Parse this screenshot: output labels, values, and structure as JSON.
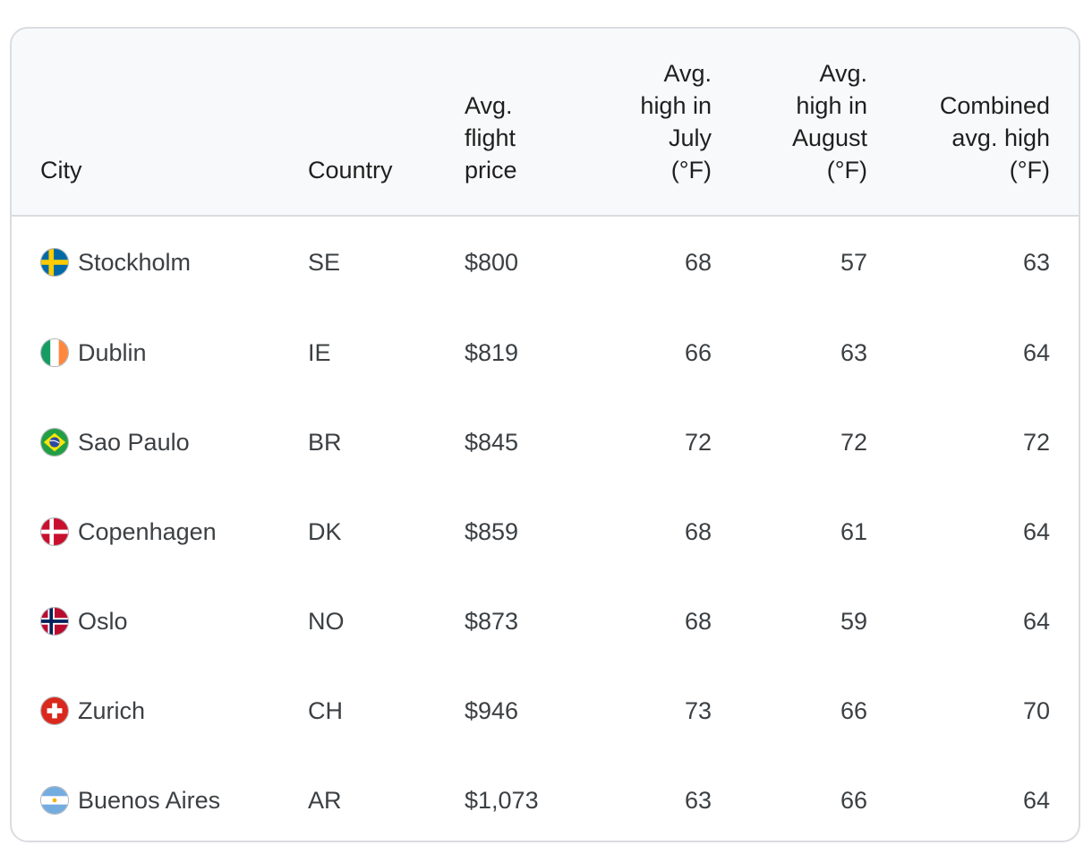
{
  "table": {
    "headers": {
      "city": "City",
      "country": "Country",
      "flight_price": "Avg. flight price",
      "high_july": "Avg. high in July (°F)",
      "high_august": "Avg. high in August (°F)",
      "combined_high": "Combined avg. high (°F)"
    },
    "rows": [
      {
        "city": "Stockholm",
        "flag_icon": "sweden-flag-icon",
        "country": "SE",
        "price": "$800",
        "july": "68",
        "august": "57",
        "combined": "63"
      },
      {
        "city": "Dublin",
        "flag_icon": "ireland-flag-icon",
        "country": "IE",
        "price": "$819",
        "july": "66",
        "august": "63",
        "combined": "64"
      },
      {
        "city": "Sao Paulo",
        "flag_icon": "brazil-flag-icon",
        "country": "BR",
        "price": "$845",
        "july": "72",
        "august": "72",
        "combined": "72"
      },
      {
        "city": "Copenhagen",
        "flag_icon": "denmark-flag-icon",
        "country": "DK",
        "price": "$859",
        "july": "68",
        "august": "61",
        "combined": "64"
      },
      {
        "city": "Oslo",
        "flag_icon": "norway-flag-icon",
        "country": "NO",
        "price": "$873",
        "july": "68",
        "august": "59",
        "combined": "64"
      },
      {
        "city": "Zurich",
        "flag_icon": "switzerland-flag-icon",
        "country": "CH",
        "price": "$946",
        "july": "73",
        "august": "66",
        "combined": "70"
      },
      {
        "city": "Buenos Aires",
        "flag_icon": "argentina-flag-icon",
        "country": "AR",
        "price": "$1,073",
        "july": "63",
        "august": "66",
        "combined": "64"
      }
    ]
  },
  "colors": {
    "header_bg": "#f8f9fa",
    "border": "#dadce0",
    "text": "#1f1f1f"
  }
}
